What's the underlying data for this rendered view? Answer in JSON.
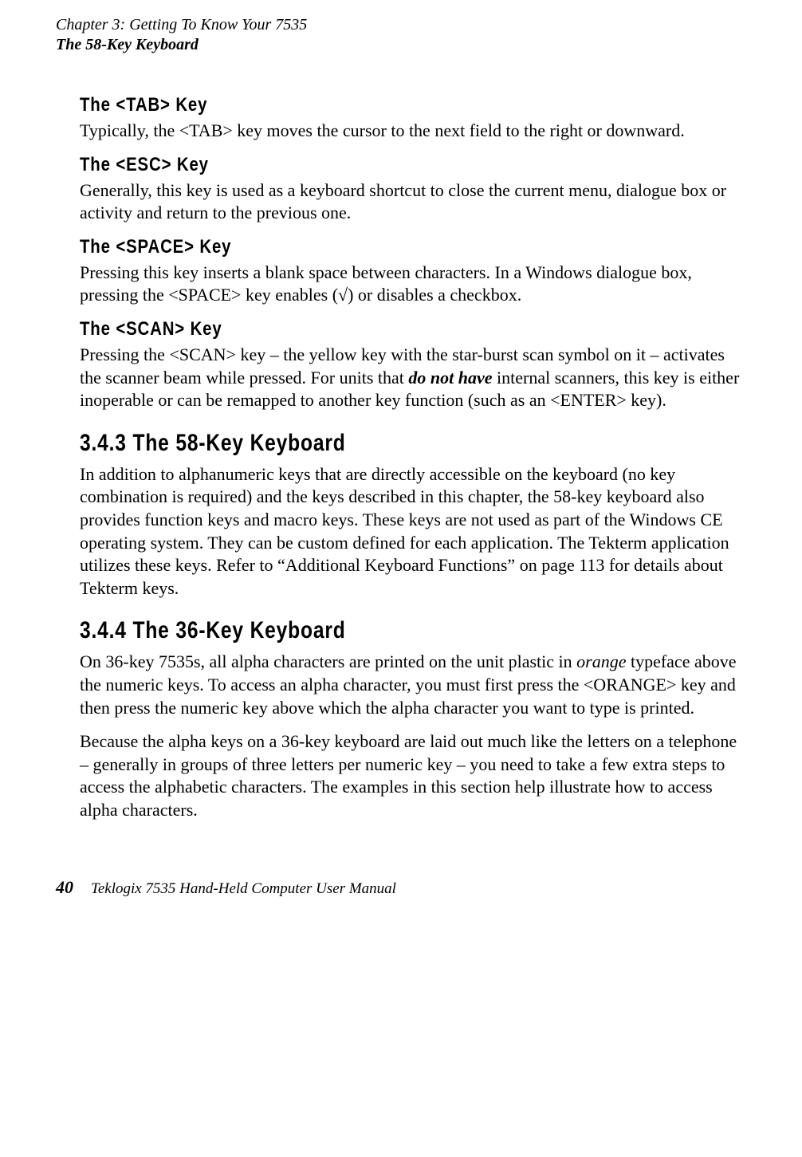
{
  "header": {
    "chapter": "Chapter 3: Getting To Know Your 7535",
    "section": "The 58-Key Keyboard"
  },
  "content": {
    "tab": {
      "heading": "The <TAB> Key",
      "text": "Typically, the <TAB> key moves the cursor to the next field to the right or downward."
    },
    "esc": {
      "heading": "The <ESC> Key",
      "text": "Generally, this key is used as a keyboard shortcut to close the current menu, dialogue box or activity and return to the previous one."
    },
    "space": {
      "heading": "The <SPACE> Key",
      "text": "Pressing this key inserts a blank space between characters. In a Windows dialogue box, pressing the <SPACE> key enables (√) or disables a checkbox."
    },
    "scan": {
      "heading": "The <SCAN> Key",
      "prefix": "Pressing the <SCAN> key – the yellow key with the star-burst scan symbol on it – activates the scanner beam while pressed. For units that ",
      "emph": "do not have",
      "suffix": " internal scanners, this key is either inoperable or can be remapped to another key function (such as an <ENTER> key)."
    },
    "s343": {
      "heading": "3.4.3  The 58-Key Keyboard",
      "text": "In addition to alphanumeric keys that are directly accessible on the keyboard (no key combination is required) and the keys described in this chapter, the 58-key keyboard also provides function keys and macro keys. These keys are not used as part of the Windows CE operating system. They can be custom defined for each application. The Tekterm application utilizes these keys. Refer to “Additional Keyboard Functions” on page 113 for details about Tekterm keys."
    },
    "s344": {
      "heading": "3.4.4  The 36-Key Keyboard",
      "p1_prefix": "On 36-key 7535s, all alpha characters are printed on the unit plastic in ",
      "p1_emph": "orange",
      "p1_suffix": " typeface above the numeric keys. To access an alpha character, you must first press the <ORANGE> key and then press the numeric key above which the alpha character you want to type is printed.",
      "p2": "Because the alpha keys on a 36-key keyboard are laid out much like the letters on a telephone – generally in groups of three letters per numeric key – you need to take a few extra steps to access the alphabetic characters. The examples in this section help illustrate how to access alpha characters."
    }
  },
  "footer": {
    "page": "40",
    "title": "Teklogix 7535 Hand-Held Computer User Manual"
  }
}
